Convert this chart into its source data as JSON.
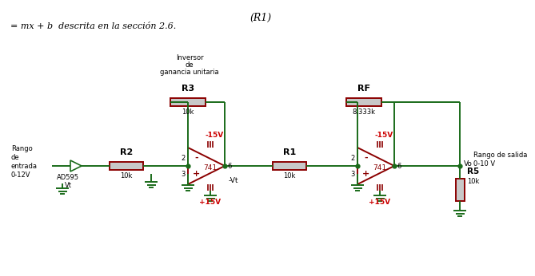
{
  "bg_color": "#ffffff",
  "wire_color": "#1a6b1a",
  "red": "#8B0000",
  "red_text": "#cc0000",
  "resistor_fill": "#c8c8c8",
  "resistor_border": "#8B0000",
  "title_top": "(R1)",
  "subtitle": "= mx + b  descrita en la sección 2.6.",
  "label_inversor_line1": "Inversor",
  "label_inversor_line2": "de",
  "label_inversor_line3": "ganancia unitaria",
  "label_R3": "R3",
  "label_R3_val": "10k",
  "label_RF": "RF",
  "label_RF_val": "8.333k",
  "label_R2": "R2",
  "label_R2_val": "10k",
  "label_R1": "R1",
  "label_R1_val": "10k",
  "label_R5": "R5",
  "label_R5_val": "10k",
  "label_741": "741",
  "label_neg15": "-15V",
  "label_pos15": "+15V",
  "label_neg_vt": "-Vt",
  "label_Vo": "Vo",
  "label_input": "Rango\nde\nentrada\n0-12V",
  "label_output": "Rango de salida\n0-10 V",
  "label_AD595": "AD595\nVt",
  "label_2": "2",
  "label_3": "3",
  "label_6": "6",
  "label_minus": "-",
  "label_plus": "+"
}
